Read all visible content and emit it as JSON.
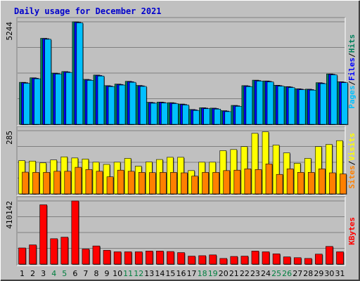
{
  "chart_data": {
    "type": "bar",
    "title": "Daily usage for December 2021",
    "categories": [
      "1",
      "2",
      "3",
      "4",
      "5",
      "6",
      "7",
      "8",
      "9",
      "10",
      "11",
      "12",
      "13",
      "14",
      "15",
      "16",
      "17",
      "18",
      "19",
      "20",
      "21",
      "22",
      "23",
      "24",
      "25",
      "26",
      "27",
      "28",
      "29",
      "30",
      "31"
    ],
    "weekend_days": [
      "4",
      "5",
      "11",
      "12",
      "18",
      "19",
      "25",
      "26"
    ],
    "colors": {
      "background": "#c0c0c0",
      "title": "#0000cc",
      "weekday_label": "#000000",
      "weekend_label": "#007f3f",
      "gridline": "#808080",
      "hits": "#00805c",
      "files": "#0000ff",
      "pages": "#00c0ff",
      "visits": "#ffff00",
      "sites": "#ff8000",
      "kbytes": "#ff0000"
    },
    "panels": [
      {
        "id": "hits-files-pages",
        "ymax_label": "5244",
        "ylim": [
          0,
          5244
        ],
        "legend": [
          {
            "text": "Pages",
            "color": "#00c0ff"
          },
          {
            "text": "/",
            "color": "#000000"
          },
          {
            "text": "Files",
            "color": "#0000ff"
          },
          {
            "text": "/",
            "color": "#000000"
          },
          {
            "text": "Hits",
            "color": "#00805c"
          }
        ],
        "series": [
          {
            "name": "Hits",
            "color": "#00805c",
            "values": [
              2150,
              2380,
              4400,
              2620,
              2700,
              5244,
              2300,
              2520,
              1980,
              2060,
              2200,
              1990,
              1130,
              1140,
              1110,
              1040,
              760,
              850,
              830,
              700,
              970,
              1980,
              2260,
              2220,
              2000,
              1930,
              1820,
              1800,
              2130,
              2580,
              2180
            ]
          },
          {
            "name": "Files",
            "color": "#0000ff",
            "values": [
              2130,
              2360,
              4380,
              2600,
              2680,
              5220,
              2280,
              2500,
              1960,
              2040,
              2180,
              1970,
              1110,
              1120,
              1090,
              1020,
              740,
              830,
              810,
              680,
              950,
              1960,
              2240,
              2200,
              1980,
              1910,
              1800,
              1780,
              2110,
              2560,
              2160
            ]
          },
          {
            "name": "Pages",
            "color": "#00c0ff",
            "values": [
              2100,
              2330,
              4350,
              2570,
              2650,
              5190,
              2250,
              2470,
              1930,
              2010,
              2150,
              1940,
              1080,
              1090,
              1060,
              990,
              710,
              800,
              780,
              650,
              920,
              1930,
              2210,
              2170,
              1950,
              1880,
              1770,
              1750,
              2080,
              2530,
              2130
            ]
          }
        ]
      },
      {
        "id": "visits-sites",
        "ymax_label": "285",
        "ylim": [
          0,
          285
        ],
        "legend": [
          {
            "text": "Sites",
            "color": "#ff8000"
          },
          {
            "text": "/",
            "color": "#000000"
          },
          {
            "text": "Visits",
            "color": "#ffff00"
          }
        ],
        "series": [
          {
            "name": "Visits",
            "color": "#ffff00",
            "values": [
              150,
              148,
              140,
              153,
              167,
              162,
              157,
              143,
              133,
              143,
              160,
              125,
              144,
              155,
              165,
              165,
              105,
              143,
              143,
              195,
              200,
              213,
              273,
              280,
              220,
              185,
              138,
              160,
              213,
              223,
              240
            ]
          },
          {
            "name": "Sites",
            "color": "#ff8000",
            "values": [
              98,
              97,
              97,
              102,
              102,
              120,
              110,
              102,
              77,
              107,
              102,
              97,
              96,
              97,
              97,
              95,
              80,
              97,
              97,
              105,
              107,
              113,
              110,
              135,
              88,
              113,
              97,
              97,
              113,
              95,
              90
            ]
          }
        ]
      },
      {
        "id": "kbytes",
        "ymax_label": "410142",
        "ylim": [
          0,
          410142
        ],
        "legend": [
          {
            "text": "KBytes",
            "color": "#ff0000"
          }
        ],
        "series": [
          {
            "name": "KBytes",
            "color": "#ff0000",
            "values": [
              105000,
              125000,
              385000,
              165000,
              175000,
              410142,
              98000,
              118000,
              90000,
              80000,
              80000,
              80000,
              85000,
              85000,
              82000,
              75000,
              52000,
              55000,
              60000,
              37000,
              50000,
              52000,
              85000,
              80000,
              67000,
              47000,
              42000,
              37000,
              65000,
              115000,
              80000
            ]
          }
        ]
      }
    ]
  }
}
